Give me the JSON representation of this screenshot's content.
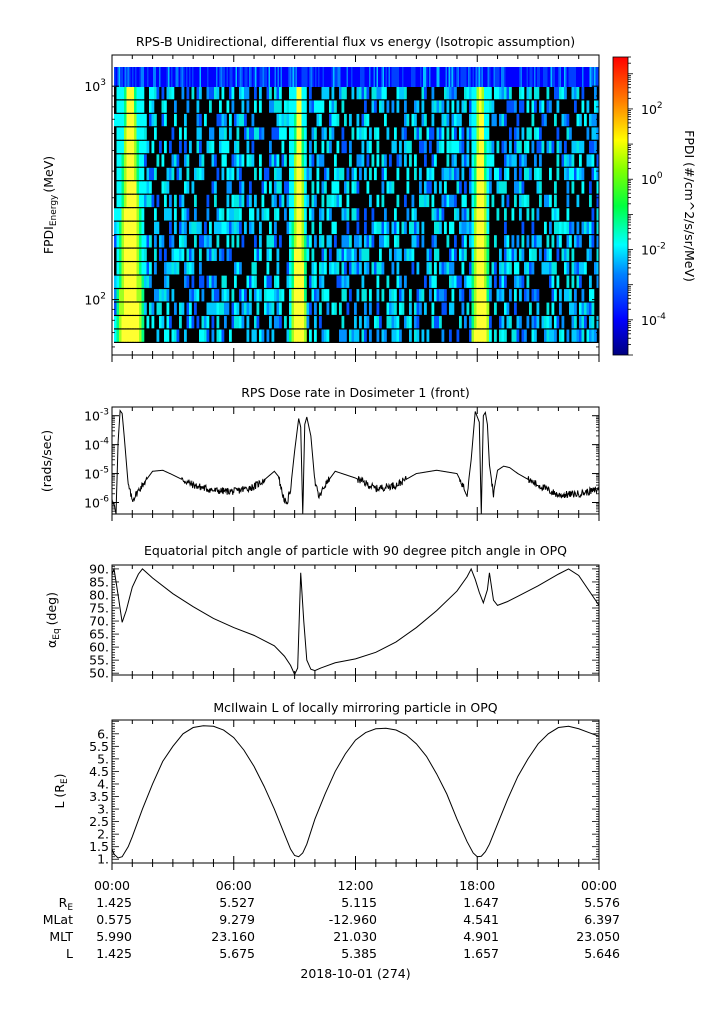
{
  "chart_data": [
    {
      "type": "heatmap",
      "title": "RPS-B  Unidirectional, differential flux vs energy (Isotropic assumption)",
      "ylabel_main": "FPDI",
      "ylabel_sub": "Energy",
      "ylabel_unit": "(MeV)",
      "y_scale": "log",
      "ylim": [
        55,
        1400
      ],
      "y_ticks": [
        {
          "value": 100,
          "base": "10",
          "exp": "2"
        },
        {
          "value": 1000,
          "base": "10",
          "exp": "3"
        }
      ],
      "xlim_hours": [
        0,
        24
      ],
      "energy_bins": 19,
      "intense_bands_hours": [
        [
          0.1,
          1.6
        ],
        [
          8.7,
          9.6
        ],
        [
          17.6,
          18.6
        ]
      ],
      "colorbar": {
        "label": "FPDI (#/cm^2/s/sr/MeV)",
        "scale": "log",
        "range": [
          1e-05,
          3000
        ],
        "ticks": [
          {
            "value": 0.0001,
            "base": "10",
            "exp": "-4"
          },
          {
            "value": 0.01,
            "base": "10",
            "exp": "-2"
          },
          {
            "value": 1,
            "base": "10",
            "exp": "0"
          },
          {
            "value": 100,
            "base": "10",
            "exp": "2"
          }
        ]
      }
    },
    {
      "type": "line",
      "title": "RPS  Dose rate in Dosimeter 1 (front)",
      "ylabel": "(rads/sec)",
      "y_scale": "log",
      "ylim": [
        4e-07,
        0.002
      ],
      "y_ticks": [
        {
          "value": 1e-06,
          "base": "10",
          "exp": "-6"
        },
        {
          "value": 1e-05,
          "base": "10",
          "exp": "-5"
        },
        {
          "value": 0.0001,
          "base": "10",
          "exp": "-4"
        },
        {
          "value": 0.001,
          "base": "10",
          "exp": "-3"
        }
      ],
      "x_hours": [
        0,
        0.1,
        0.2,
        0.3,
        0.4,
        0.5,
        0.6,
        0.8,
        1.0,
        1.2,
        1.5,
        2.0,
        2.5,
        3.0,
        4.0,
        5.0,
        6.0,
        7.0,
        7.5,
        8.0,
        8.2,
        8.4,
        8.6,
        8.8,
        9.0,
        9.2,
        9.3,
        9.4,
        9.5,
        9.6,
        9.8,
        10.0,
        10.2,
        10.5,
        11.0,
        12.0,
        13.0,
        14.0,
        15.0,
        16.0,
        17.0,
        17.5,
        17.7,
        17.9,
        18.1,
        18.2,
        18.3,
        18.4,
        18.5,
        18.6,
        18.8,
        19.0,
        19.3,
        19.6,
        20.0,
        21.0,
        22.0,
        23.0,
        24.0
      ],
      "values": [
        1.5e-06,
        8e-07,
        4e-07,
        0.00012,
        0.0015,
        0.0012,
        0.0002,
        4e-06,
        1.2e-06,
        2e-06,
        4e-06,
        1.2e-05,
        1.3e-05,
        9e-06,
        4e-06,
        2.6e-06,
        2.4e-06,
        3.5e-06,
        6e-06,
        1.2e-05,
        8e-06,
        2e-06,
        8e-07,
        3e-06,
        6e-05,
        0.0008,
        0.0004,
        4e-07,
        0.0005,
        0.0009,
        0.0002,
        5e-06,
        1.5e-06,
        4e-06,
        1.2e-05,
        7e-06,
        3e-06,
        4e-06,
        1e-05,
        1.3e-05,
        1e-05,
        2e-06,
        3e-05,
        0.0014,
        0.0006,
        4e-07,
        0.001,
        0.0013,
        0.0005,
        2e-05,
        2e-06,
        1.3e-05,
        1.8e-05,
        1.6e-05,
        1e-05,
        4e-06,
        1.8e-06,
        2e-06,
        2.8e-06
      ]
    },
    {
      "type": "line",
      "title": "Equatorial pitch angle of particle with 90 degree pitch angle in OPQ",
      "ylabel_main": "α",
      "ylabel_sub": "Eq",
      "ylabel_unit": "(deg)",
      "ylim": [
        49.3,
        91.5
      ],
      "y_ticks": [
        50,
        55,
        60,
        65,
        70,
        75,
        80,
        85,
        90
      ],
      "x_hours": [
        0,
        0.1,
        0.3,
        0.5,
        0.7,
        1.0,
        1.3,
        1.5,
        2.0,
        3.0,
        4.0,
        5.0,
        6.0,
        7.0,
        8.0,
        8.5,
        8.8,
        9.0,
        9.15,
        9.3,
        9.45,
        9.6,
        9.8,
        10.0,
        10.3,
        11.0,
        12.0,
        13.0,
        14.0,
        15.0,
        16.0,
        17.0,
        17.5,
        17.7,
        17.9,
        18.1,
        18.3,
        18.5,
        18.6,
        18.8,
        19.0,
        19.5,
        20.0,
        21.0,
        22.0,
        22.5,
        23.0,
        24.0
      ],
      "values": [
        88,
        90,
        80,
        69.5,
        74,
        83,
        88,
        90,
        86.5,
        80.5,
        75.5,
        71,
        67.5,
        64.5,
        60.5,
        56.5,
        53,
        49.5,
        52,
        88.5,
        70,
        55,
        51.5,
        51,
        52,
        54,
        55.5,
        58,
        62,
        67.5,
        74,
        81.5,
        87,
        90,
        86,
        81,
        77,
        82,
        88.5,
        78,
        76,
        77.5,
        79.5,
        83.5,
        88,
        90,
        87.5,
        76
      ]
    },
    {
      "type": "line",
      "title": "McIlwain L of locally mirroring particle in OPQ",
      "ylabel_main": "L (R",
      "ylabel_sub": "E",
      "ylabel_unit": ")",
      "ylim": [
        0.85,
        6.55
      ],
      "y_ticks": [
        1,
        1.5,
        2,
        2.5,
        3,
        3.5,
        4,
        4.5,
        5,
        5.5,
        6
      ],
      "y_tick_labels": [
        "1.",
        "1.5",
        "2.",
        "2.5",
        "3.",
        "3.5",
        "4.",
        "4.5",
        "5.",
        "5.5",
        "6."
      ],
      "x_hours": [
        0,
        0.1,
        0.3,
        0.5,
        0.8,
        1.0,
        1.5,
        2.0,
        2.5,
        3.0,
        3.5,
        4.0,
        4.5,
        5.0,
        5.5,
        6.0,
        6.5,
        7.0,
        7.5,
        8.0,
        8.5,
        8.8,
        9.0,
        9.2,
        9.4,
        9.6,
        10.0,
        10.5,
        11.0,
        11.5,
        12.0,
        12.5,
        13.0,
        13.5,
        14.0,
        14.5,
        15.0,
        15.5,
        16.0,
        16.5,
        17.0,
        17.5,
        17.8,
        18.0,
        18.2,
        18.4,
        18.6,
        19.0,
        19.5,
        20.0,
        20.5,
        21.0,
        21.5,
        22.0,
        22.5,
        23.0,
        23.5,
        24.0
      ],
      "values": [
        1.4,
        1.2,
        1.05,
        1.1,
        1.5,
        1.9,
        3.0,
        4.0,
        4.9,
        5.5,
        6.0,
        6.25,
        6.32,
        6.3,
        6.15,
        5.85,
        5.35,
        4.7,
        3.9,
        3.0,
        2.0,
        1.4,
        1.15,
        1.1,
        1.25,
        1.6,
        2.6,
        3.6,
        4.5,
        5.2,
        5.75,
        6.05,
        6.2,
        6.22,
        6.15,
        5.95,
        5.6,
        5.1,
        4.4,
        3.6,
        2.6,
        1.7,
        1.25,
        1.1,
        1.12,
        1.3,
        1.6,
        2.4,
        3.4,
        4.3,
        5.0,
        5.6,
        6.0,
        6.25,
        6.3,
        6.2,
        6.05,
        5.9
      ]
    }
  ],
  "x_axis": {
    "tick_hours": [
      0,
      6,
      12,
      18,
      24
    ],
    "tick_labels": [
      "00:00",
      "06:00",
      "12:00",
      "18:00",
      "00:00"
    ],
    "date_label": "2018-10-01 (274)"
  },
  "ephemeris": {
    "rows": [
      {
        "label_main": "R",
        "label_sub": "E",
        "values": [
          "1.425",
          "5.527",
          "5.115",
          "1.647",
          "5.576"
        ]
      },
      {
        "label_main": "MLat",
        "label_sub": "",
        "values": [
          "0.575",
          "9.279",
          "-12.960",
          "4.541",
          "6.397"
        ]
      },
      {
        "label_main": "MLT",
        "label_sub": "",
        "values": [
          "5.990",
          "23.160",
          "21.030",
          "4.901",
          "23.050"
        ]
      },
      {
        "label_main": "L",
        "label_sub": "",
        "values": [
          "1.425",
          "5.675",
          "5.385",
          "1.657",
          "5.646"
        ]
      }
    ]
  }
}
